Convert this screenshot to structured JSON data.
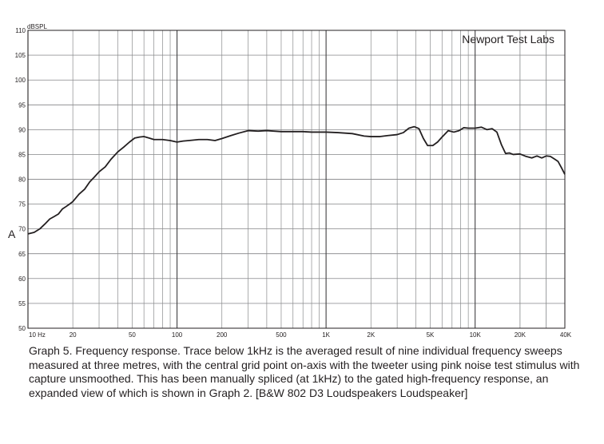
{
  "chart_data": {
    "type": "line",
    "ylabel": "dBSPL",
    "watermark": "Newport Test Labs",
    "side_marker": "A",
    "x_scale": "log",
    "xlim": [
      10,
      40000
    ],
    "ylim": [
      50,
      110
    ],
    "grid": true,
    "x_tick_labels": [
      {
        "value": 10,
        "label": "10  Hz"
      },
      {
        "value": 20,
        "label": "20"
      },
      {
        "value": 50,
        "label": "50"
      },
      {
        "value": 100,
        "label": "100"
      },
      {
        "value": 200,
        "label": "200"
      },
      {
        "value": 500,
        "label": "500"
      },
      {
        "value": 1000,
        "label": "1K"
      },
      {
        "value": 2000,
        "label": "2K"
      },
      {
        "value": 5000,
        "label": "5K"
      },
      {
        "value": 10000,
        "label": "10K"
      },
      {
        "value": 20000,
        "label": "20K"
      },
      {
        "value": 40000,
        "label": "40K"
      }
    ],
    "y_ticks": [
      50,
      55,
      60,
      65,
      70,
      75,
      80,
      85,
      90,
      95,
      100,
      105,
      110
    ],
    "series": [
      {
        "color": "#231f20",
        "points": [
          [
            10,
            69.0
          ],
          [
            11,
            69.3
          ],
          [
            12,
            70.0
          ],
          [
            13,
            71.0
          ],
          [
            14,
            72.0
          ],
          [
            15,
            72.5
          ],
          [
            16,
            73.0
          ],
          [
            17,
            74.0
          ],
          [
            18,
            74.5
          ],
          [
            19,
            75.0
          ],
          [
            20,
            75.5
          ],
          [
            22,
            77.0
          ],
          [
            24,
            78.0
          ],
          [
            26,
            79.5
          ],
          [
            28,
            80.5
          ],
          [
            30,
            81.5
          ],
          [
            33,
            82.5
          ],
          [
            36,
            84.0
          ],
          [
            40,
            85.5
          ],
          [
            44,
            86.5
          ],
          [
            48,
            87.5
          ],
          [
            52,
            88.3
          ],
          [
            56,
            88.5
          ],
          [
            60,
            88.6
          ],
          [
            65,
            88.3
          ],
          [
            70,
            88.0
          ],
          [
            80,
            88.0
          ],
          [
            90,
            87.8
          ],
          [
            100,
            87.5
          ],
          [
            110,
            87.7
          ],
          [
            120,
            87.8
          ],
          [
            140,
            88.0
          ],
          [
            160,
            88.0
          ],
          [
            180,
            87.8
          ],
          [
            200,
            88.2
          ],
          [
            230,
            88.8
          ],
          [
            260,
            89.3
          ],
          [
            300,
            89.8
          ],
          [
            350,
            89.7
          ],
          [
            400,
            89.8
          ],
          [
            500,
            89.6
          ],
          [
            600,
            89.6
          ],
          [
            700,
            89.6
          ],
          [
            800,
            89.5
          ],
          [
            900,
            89.5
          ],
          [
            1000,
            89.5
          ],
          [
            1200,
            89.4
          ],
          [
            1500,
            89.2
          ],
          [
            1800,
            88.7
          ],
          [
            2000,
            88.6
          ],
          [
            2300,
            88.6
          ],
          [
            2600,
            88.8
          ],
          [
            3000,
            89.0
          ],
          [
            3300,
            89.4
          ],
          [
            3600,
            90.3
          ],
          [
            3900,
            90.6
          ],
          [
            4200,
            90.2
          ],
          [
            4500,
            88.2
          ],
          [
            4800,
            86.8
          ],
          [
            5200,
            86.8
          ],
          [
            5600,
            87.5
          ],
          [
            6000,
            88.5
          ],
          [
            6600,
            89.8
          ],
          [
            7200,
            89.5
          ],
          [
            7800,
            89.8
          ],
          [
            8400,
            90.4
          ],
          [
            9000,
            90.3
          ],
          [
            10000,
            90.3
          ],
          [
            11000,
            90.5
          ],
          [
            12000,
            90.0
          ],
          [
            13000,
            90.2
          ],
          [
            14000,
            89.5
          ],
          [
            15000,
            87.0
          ],
          [
            16000,
            85.2
          ],
          [
            17000,
            85.3
          ],
          [
            18000,
            85.0
          ],
          [
            20000,
            85.1
          ],
          [
            22000,
            84.6
          ],
          [
            24000,
            84.3
          ],
          [
            26000,
            84.7
          ],
          [
            28000,
            84.3
          ],
          [
            30000,
            84.7
          ],
          [
            32000,
            84.6
          ],
          [
            34000,
            84.1
          ],
          [
            36000,
            83.6
          ],
          [
            38000,
            82.3
          ],
          [
            40000,
            81.0
          ]
        ]
      }
    ]
  },
  "caption": "Graph 5. Frequency response. Trace below 1kHz is the averaged result of nine individual frequency sweeps measured at three metres, with the central grid point on-axis with the tweeter using pink noise test stimulus with capture unsmoothed. This has been manually spliced (at 1kHz) to the gated high-frequency response, an expanded view of which is shown in Graph 2. [B&W 802 D3 Loudspeakers Loudspeaker]"
}
